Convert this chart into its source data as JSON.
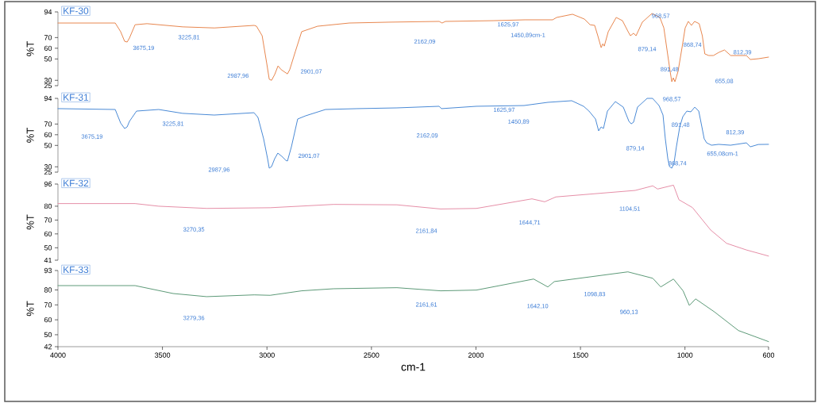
{
  "chart_data": [
    {
      "type": "line",
      "title": "KF-30",
      "ylabel": "%T",
      "xlim": [
        4000,
        600
      ],
      "ylim": [
        25,
        94
      ],
      "yticks": [
        25,
        30,
        50,
        60,
        70,
        94
      ],
      "tick_labels": "y",
      "x": [
        4000,
        3726,
        3700,
        3681,
        3669,
        3658,
        3631,
        3574,
        3403,
        3251,
        3061,
        3050,
        3023,
        3001,
        2989,
        2978,
        2963,
        2947,
        2932,
        2902,
        2891,
        2864,
        2834,
        2758,
        2606,
        2416,
        2176,
        2162,
        2146,
        1918,
        1766,
        1633,
        1614,
        1538,
        1481,
        1454,
        1432,
        1417,
        1401,
        1393,
        1386,
        1367,
        1329,
        1299,
        1272,
        1261,
        1246,
        1234,
        1204,
        1158,
        1120,
        1101,
        1082,
        1071,
        1063,
        1056,
        1048,
        1033,
        1014,
        999,
        984,
        969,
        954,
        932,
        917,
        905,
        886,
        864,
        837,
        811,
        781,
        706,
        687,
        649,
        600
      ],
      "series": [
        {
          "color": "#e8874f",
          "values": [
            83.6,
            83.6,
            75.5,
            66.5,
            65.8,
            69.5,
            82,
            83,
            80,
            79,
            81.4,
            80.6,
            71.7,
            45.8,
            31,
            30,
            35.4,
            43.5,
            40,
            36,
            40,
            57,
            75.5,
            80.6,
            83.6,
            84.4,
            85.1,
            83.6,
            85.1,
            85.8,
            86.6,
            86.6,
            88.8,
            91.8,
            87.3,
            82,
            81.4,
            71.7,
            60.6,
            64.2,
            62,
            75.5,
            88.8,
            85.8,
            75.5,
            71.7,
            74,
            71.7,
            84.4,
            92.5,
            88.8,
            79,
            53.2,
            38.4,
            28.7,
            32.3,
            28.7,
            38.4,
            60.6,
            79,
            85.1,
            81.4,
            85.1,
            83,
            71.7,
            54.7,
            53.2,
            53.2,
            56.2,
            58.4,
            53.2,
            53.2,
            49.5,
            50.2,
            51.7
          ]
        }
      ],
      "annotations": [
        "3675,19",
        "3225,81",
        "2987,96",
        "2901,07",
        "2162,09",
        "1625,97",
        "1450,89cm-1",
        "968,57",
        "879,14",
        "868,74",
        "891,48",
        "812,39",
        "655,08"
      ]
    },
    {
      "type": "line",
      "title": "KF-31",
      "ylabel": "%T",
      "xlim": [
        4000,
        600
      ],
      "ylim": [
        25,
        94
      ],
      "yticks": [
        25,
        30,
        50,
        60,
        70,
        94
      ],
      "tick_labels": "y",
      "x": [
        4000,
        3726,
        3700,
        3681,
        3669,
        3658,
        3624,
        3518,
        3404,
        3252,
        3062,
        3043,
        3016,
        2997,
        2989,
        2978,
        2963,
        2948,
        2929,
        2910,
        2902,
        2883,
        2853,
        2815,
        2720,
        2568,
        2378,
        2176,
        2165,
        1998,
        1770,
        1656,
        1542,
        1485,
        1459,
        1428,
        1413,
        1401,
        1390,
        1371,
        1333,
        1295,
        1268,
        1257,
        1246,
        1227,
        1181,
        1155,
        1124,
        1105,
        1094,
        1082,
        1074,
        1063,
        1052,
        1041,
        1025,
        1010,
        991,
        972,
        953,
        934,
        919,
        908,
        896,
        873,
        839,
        782,
        706,
        687,
        649,
        600
      ],
      "series": [
        {
          "color": "#4a8ad6",
          "values": [
            84.4,
            83.6,
            70.9,
            65.8,
            67.3,
            72.5,
            82.1,
            83.6,
            80,
            78.4,
            80.6,
            76.2,
            56.2,
            37.6,
            28.7,
            30.2,
            37.6,
            42.8,
            39.8,
            36.1,
            35.4,
            48.7,
            74.7,
            77.7,
            83.6,
            84.4,
            85.1,
            86.6,
            84.4,
            86.6,
            87.3,
            90.3,
            91.8,
            86.6,
            82.1,
            74.7,
            63.6,
            67.3,
            65.8,
            82.1,
            91,
            85.8,
            72.5,
            70.2,
            71.7,
            85.8,
            94,
            94,
            87.3,
            78.4,
            56.2,
            37.6,
            30.2,
            28.7,
            33.9,
            48.7,
            67.3,
            77,
            82.1,
            81.4,
            85.8,
            82.1,
            67.3,
            56.2,
            52.4,
            50.2,
            51,
            50.2,
            52.4,
            48.7,
            50.9,
            51
          ]
        }
      ],
      "annotations": [
        "3675,19",
        "3225,81",
        "2987,96",
        "2901,07",
        "2162,09",
        "1625,97",
        "1450,89",
        "968,57",
        "891,48",
        "879,14",
        "868,74",
        "812,39",
        "655,08cm-1"
      ]
    },
    {
      "type": "line",
      "title": "KF-32",
      "ylabel": "%T",
      "xlim": [
        4000,
        600
      ],
      "ylim": [
        41,
        96
      ],
      "yticks": [
        41,
        50,
        60,
        70,
        80,
        96
      ],
      "tick_labels": "y",
      "x": [
        4000,
        3631,
        3518,
        3289,
        2985,
        2681,
        2378,
        2169,
        1998,
        1732,
        1671,
        1618,
        1238,
        1154,
        1131,
        1055,
        1029,
        964,
        877,
        801,
        706,
        600
      ],
      "series": [
        {
          "color": "#e68fa8",
          "values": [
            81.9,
            81.9,
            80,
            78.4,
            78.9,
            81.3,
            81,
            78,
            78.4,
            85.3,
            83.2,
            86.7,
            91.4,
            94.7,
            92.4,
            95.2,
            84.7,
            79,
            62.8,
            53.2,
            48.4,
            44
          ]
        }
      ],
      "annotations": [
        "3270,35",
        "2161,84",
        "1644,71",
        "1104,51"
      ]
    },
    {
      "type": "line",
      "title": "KF-33",
      "ylabel": "%T",
      "xlabel": "cm-1",
      "xlim": [
        4000,
        600
      ],
      "ylim": [
        42,
        93
      ],
      "yticks": [
        42,
        50,
        60,
        70,
        80,
        93
      ],
      "xticks": [
        4000,
        3500,
        3000,
        2500,
        2000,
        1500,
        1000,
        600
      ],
      "x": [
        4000,
        3631,
        3449,
        3289,
        3061,
        2985,
        2834,
        2681,
        2378,
        2169,
        1998,
        1724,
        1656,
        1625,
        1273,
        1154,
        1116,
        1055,
        1009,
        979,
        949,
        858,
        744,
        600
      ],
      "series": [
        {
          "color": "#5d9a78",
          "values": [
            82.9,
            82.9,
            77.6,
            75.5,
            76.7,
            76.4,
            79.4,
            80.8,
            81.5,
            79.4,
            79.9,
            87.3,
            82,
            85.6,
            92.1,
            87.8,
            82,
            87.3,
            79.4,
            69.6,
            74,
            65.2,
            52.8,
            45.4
          ]
        }
      ],
      "annotations": [
        "3279,36",
        "2161,61",
        "1642,10",
        "1098,83",
        "960,13"
      ]
    }
  ]
}
